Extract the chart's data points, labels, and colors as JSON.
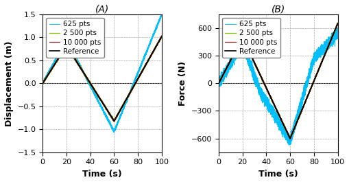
{
  "title_A": "(A)",
  "title_B": "(B)",
  "xlabel": "Time (s)",
  "ylabel_A": "Displacement (m)",
  "ylabel_B": "Force (N)",
  "xlim": [
    0,
    100
  ],
  "ylim_A": [
    -1.5,
    1.5
  ],
  "ylim_B": [
    -750,
    750
  ],
  "yticks_A": [
    -1.5,
    -1.0,
    -0.5,
    0,
    0.5,
    1.0,
    1.5
  ],
  "yticks_B": [
    -600,
    -300,
    0,
    300,
    600
  ],
  "xticks": [
    0,
    20,
    40,
    60,
    80,
    100
  ],
  "legend_labels": [
    "625 pts",
    "2 500 pts",
    "10 000 pts",
    "Reference"
  ],
  "colors": {
    "625": "#00BFFF",
    "2500": "#7FBF00",
    "10000": "#8B2020",
    "ref": "#000000"
  },
  "background": "#f5f5f5"
}
